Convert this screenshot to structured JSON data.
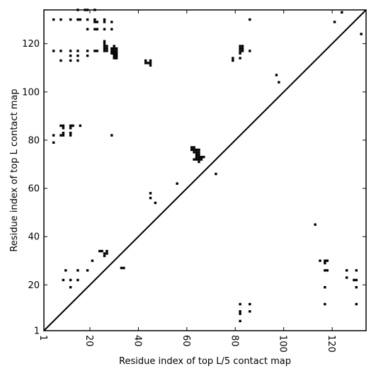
{
  "chart_data": {
    "type": "heatmap",
    "xlabel": "Residue index of top L/5 contact map",
    "ylabel": "Residue index of top L contact map",
    "xlim": [
      1,
      134
    ],
    "ylim": [
      1,
      134
    ],
    "x_ticks": [
      1,
      20,
      40,
      60,
      80,
      100,
      120
    ],
    "y_ticks": [
      1,
      20,
      40,
      60,
      80,
      100,
      120
    ],
    "x_tick_rotation": "90deg",
    "diagonal_line": true,
    "grid": false,
    "cell_color": "#000000",
    "background_color": "#ffffff",
    "upper_triangle_contacts": [
      [
        5,
        130
      ],
      [
        8,
        130
      ],
      [
        12,
        130
      ],
      [
        15,
        130
      ],
      [
        16,
        130
      ],
      [
        19,
        130
      ],
      [
        22,
        130
      ],
      [
        26,
        130
      ],
      [
        26,
        129
      ],
      [
        29,
        129
      ],
      [
        22,
        129
      ],
      [
        23,
        129
      ],
      [
        15,
        134
      ],
      [
        18,
        134
      ],
      [
        19,
        134
      ],
      [
        22,
        134
      ],
      [
        86,
        130
      ],
      [
        124,
        133
      ],
      [
        132,
        124
      ],
      [
        121,
        129
      ],
      [
        19,
        126
      ],
      [
        22,
        126
      ],
      [
        23,
        126
      ],
      [
        26,
        126
      ],
      [
        29,
        126
      ],
      [
        26,
        121
      ],
      [
        26,
        120
      ],
      [
        26,
        119
      ],
      [
        27,
        119
      ],
      [
        26,
        118
      ],
      [
        27,
        118
      ],
      [
        26,
        117
      ],
      [
        27,
        117
      ],
      [
        29,
        118
      ],
      [
        30,
        118
      ],
      [
        31,
        118
      ],
      [
        29,
        117
      ],
      [
        30,
        117
      ],
      [
        31,
        117
      ],
      [
        29,
        116
      ],
      [
        30,
        116
      ],
      [
        31,
        116
      ],
      [
        30,
        115
      ],
      [
        31,
        115
      ],
      [
        30,
        114
      ],
      [
        31,
        114
      ],
      [
        30,
        119
      ],
      [
        5,
        117
      ],
      [
        8,
        117
      ],
      [
        12,
        117
      ],
      [
        15,
        117
      ],
      [
        19,
        117
      ],
      [
        22,
        117
      ],
      [
        23,
        117
      ],
      [
        12,
        115
      ],
      [
        15,
        115
      ],
      [
        19,
        115
      ],
      [
        8,
        113
      ],
      [
        12,
        113
      ],
      [
        15,
        113
      ],
      [
        43,
        113
      ],
      [
        43,
        112
      ],
      [
        44,
        112
      ],
      [
        45,
        112
      ],
      [
        45,
        113
      ],
      [
        45,
        111
      ],
      [
        79,
        114
      ],
      [
        79,
        113
      ],
      [
        82,
        114
      ],
      [
        82,
        119
      ],
      [
        83,
        119
      ],
      [
        82,
        118
      ],
      [
        83,
        118
      ],
      [
        82,
        117
      ],
      [
        83,
        117
      ],
      [
        82,
        116
      ],
      [
        86,
        117
      ],
      [
        97,
        107
      ],
      [
        98,
        104
      ],
      [
        5,
        82
      ],
      [
        5,
        79
      ],
      [
        8,
        82
      ],
      [
        9,
        82
      ],
      [
        9,
        83
      ],
      [
        8,
        86
      ],
      [
        9,
        86
      ],
      [
        9,
        85
      ],
      [
        12,
        86
      ],
      [
        13,
        86
      ],
      [
        12,
        85
      ],
      [
        12,
        83
      ],
      [
        12,
        82
      ],
      [
        16,
        86
      ],
      [
        29,
        82
      ],
      [
        62,
        77
      ],
      [
        63,
        77
      ],
      [
        62,
        76
      ],
      [
        63,
        76
      ],
      [
        64,
        76
      ],
      [
        65,
        76
      ],
      [
        63,
        75
      ],
      [
        64,
        75
      ],
      [
        65,
        75
      ],
      [
        64,
        74
      ],
      [
        65,
        74
      ],
      [
        64,
        73
      ],
      [
        65,
        73
      ],
      [
        66,
        73
      ],
      [
        67,
        73
      ],
      [
        63,
        72
      ],
      [
        64,
        72
      ],
      [
        65,
        72
      ],
      [
        66,
        72
      ],
      [
        65,
        71
      ],
      [
        72,
        66
      ],
      [
        56,
        62
      ],
      [
        45,
        58
      ],
      [
        45,
        56
      ],
      [
        47,
        54
      ]
    ],
    "lower_triangle_contacts": [
      [
        113,
        45
      ],
      [
        115,
        30
      ],
      [
        117,
        30
      ],
      [
        118,
        30
      ],
      [
        117,
        29
      ],
      [
        117,
        26
      ],
      [
        118,
        26
      ],
      [
        117,
        19
      ],
      [
        117,
        12
      ],
      [
        126,
        26
      ],
      [
        130,
        26
      ],
      [
        126,
        23
      ],
      [
        129,
        22
      ],
      [
        130,
        22
      ],
      [
        130,
        19
      ],
      [
        130,
        12
      ],
      [
        24,
        34
      ],
      [
        25,
        34
      ],
      [
        27,
        34
      ],
      [
        26,
        33
      ],
      [
        27,
        33
      ],
      [
        26,
        32
      ],
      [
        21,
        30
      ],
      [
        33,
        27
      ],
      [
        34,
        27
      ],
      [
        10,
        26
      ],
      [
        15,
        26
      ],
      [
        19,
        26
      ],
      [
        9,
        22
      ],
      [
        12,
        22
      ],
      [
        15,
        22
      ],
      [
        12,
        19
      ],
      [
        82,
        12
      ],
      [
        86,
        12
      ],
      [
        82,
        9
      ],
      [
        82,
        8
      ],
      [
        86,
        9
      ],
      [
        82,
        5
      ]
    ]
  }
}
